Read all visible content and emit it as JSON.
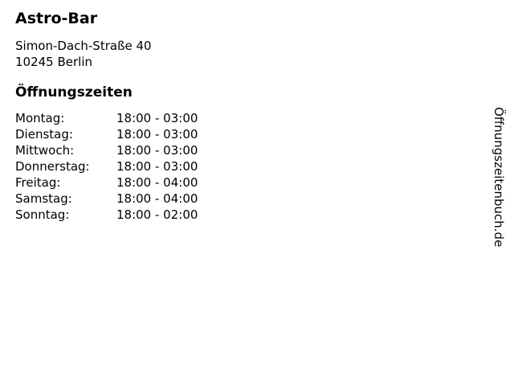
{
  "page": {
    "background_color": "#ffffff",
    "text_color": "#000000"
  },
  "business": {
    "name": "Astro-Bar",
    "address_line1": "Simon-Dach-Straße 40",
    "address_line2": "10245 Berlin"
  },
  "hours": {
    "heading": "Öffnungszeiten",
    "rows": [
      {
        "day": "Montag:",
        "time": "18:00 - 03:00"
      },
      {
        "day": "Dienstag:",
        "time": "18:00 - 03:00"
      },
      {
        "day": "Mittwoch:",
        "time": "18:00 - 03:00"
      },
      {
        "day": "Donnerstag:",
        "time": "18:00 - 03:00"
      },
      {
        "day": "Freitag:",
        "time": "18:00 - 04:00"
      },
      {
        "day": "Samstag:",
        "time": "18:00 - 04:00"
      },
      {
        "day": "Sonntag:",
        "time": "18:00 - 02:00"
      }
    ]
  },
  "watermark": {
    "text": "Öffnungszeitenbuch.de"
  }
}
